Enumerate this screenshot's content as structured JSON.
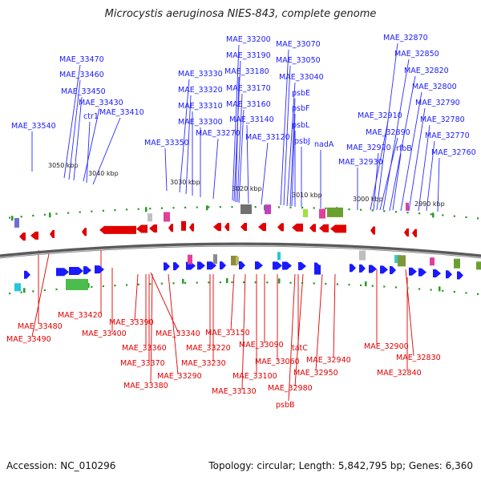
{
  "title": "Microcystis aeruginosa NIES-843, complete genome",
  "footer": {
    "accession": "Accession: NC_010296",
    "summary": "Topology: circular; Length: 5,842,795 bp; Genes: 6,360"
  },
  "colors": {
    "forward": "#1a1aff",
    "reverse": "#e00000",
    "backbone": "#888888",
    "tick": "#2a9a2a"
  },
  "kbp_ticks": [
    "3050 kbp",
    "3040 kbp",
    "3030 kbp",
    "3020 kbp",
    "3010 kbp",
    "3000 kbp",
    "2990 kbp"
  ],
  "forward_labels": [
    "MAE_33540",
    "MAE_33470",
    "MAE_33460",
    "MAE_33450",
    "MAE_33430",
    "ctr1",
    "MAE_33410",
    "MAE_33350",
    "MAE_33330",
    "MAE_33320",
    "MAE_33310",
    "MAE_33300",
    "MAE_33270",
    "MAE_33200",
    "MAE_33190",
    "MAE_33180",
    "MAE_33170",
    "MAE_33160",
    "MAE_33140",
    "MAE_33120",
    "MAE_33070",
    "MAE_33050",
    "MAE_33040",
    "psbE",
    "psbF",
    "psbL",
    "psbJ",
    "nadA",
    "MAE_32870",
    "MAE_32850",
    "MAE_32820",
    "MAE_32800",
    "MAE_32790",
    "MAE_32780",
    "MAE_32770",
    "MAE_32760",
    "MAE_32910",
    "MAE_32890",
    "MAE_32920",
    "rfbB",
    "MAE_32930"
  ],
  "reverse_labels": [
    "MAE_33420",
    "MAE_33480",
    "MAE_33490",
    "MAE_33400",
    "MAE_33390",
    "MAE_33340",
    "MAE_33360",
    "MAE_33370",
    "MAE_33380",
    "MAE_33290",
    "MAE_33220",
    "MAE_33230",
    "MAE_33150",
    "MAE_33130",
    "MAE_33100",
    "MAE_33090",
    "MAE_33060",
    "tatC",
    "MAE_32980",
    "psbB",
    "MAE_32950",
    "MAE_32940",
    "MAE_32900",
    "MAE_32830",
    "MAE_32840"
  ]
}
